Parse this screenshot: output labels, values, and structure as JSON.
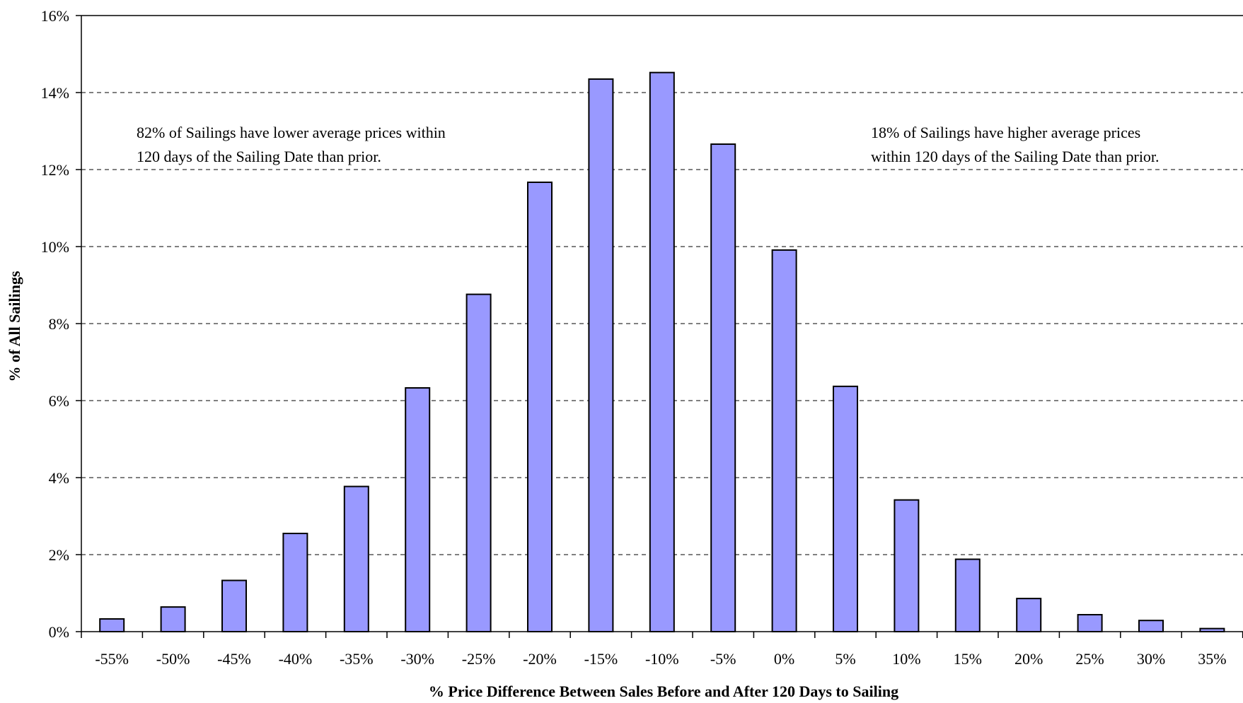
{
  "chart_data": {
    "type": "bar",
    "categories": [
      "-55%",
      "-50%",
      "-45%",
      "-40%",
      "-35%",
      "-30%",
      "-25%",
      "-20%",
      "-15%",
      "-10%",
      "-5%",
      "0%",
      "5%",
      "10%",
      "15%",
      "20%",
      "25%",
      "30%",
      "35%"
    ],
    "values": [
      0.33,
      0.64,
      1.33,
      2.55,
      3.77,
      6.33,
      8.76,
      11.67,
      14.35,
      14.52,
      12.66,
      9.91,
      6.37,
      3.42,
      1.88,
      0.86,
      0.44,
      0.29,
      0.08
    ],
    "xlabel": "% Price Difference Between Sales Before and After 120 Days to Sailing",
    "ylabel": "% of All Sailings",
    "ylim": [
      0,
      16
    ],
    "yticks": [
      "0%",
      "2%",
      "4%",
      "6%",
      "8%",
      "10%",
      "12%",
      "14%",
      "16%"
    ],
    "grid": true,
    "annotations": [
      {
        "lines": [
          "82% of Sailings have lower average prices within",
          "120 days of the Sailing Date than prior."
        ]
      },
      {
        "lines": [
          "18% of Sailings have higher average prices",
          "within 120 days of the Sailing Date than prior."
        ]
      }
    ],
    "colors": {
      "bar": "#9999ff",
      "bar_edge": "#000000"
    }
  }
}
